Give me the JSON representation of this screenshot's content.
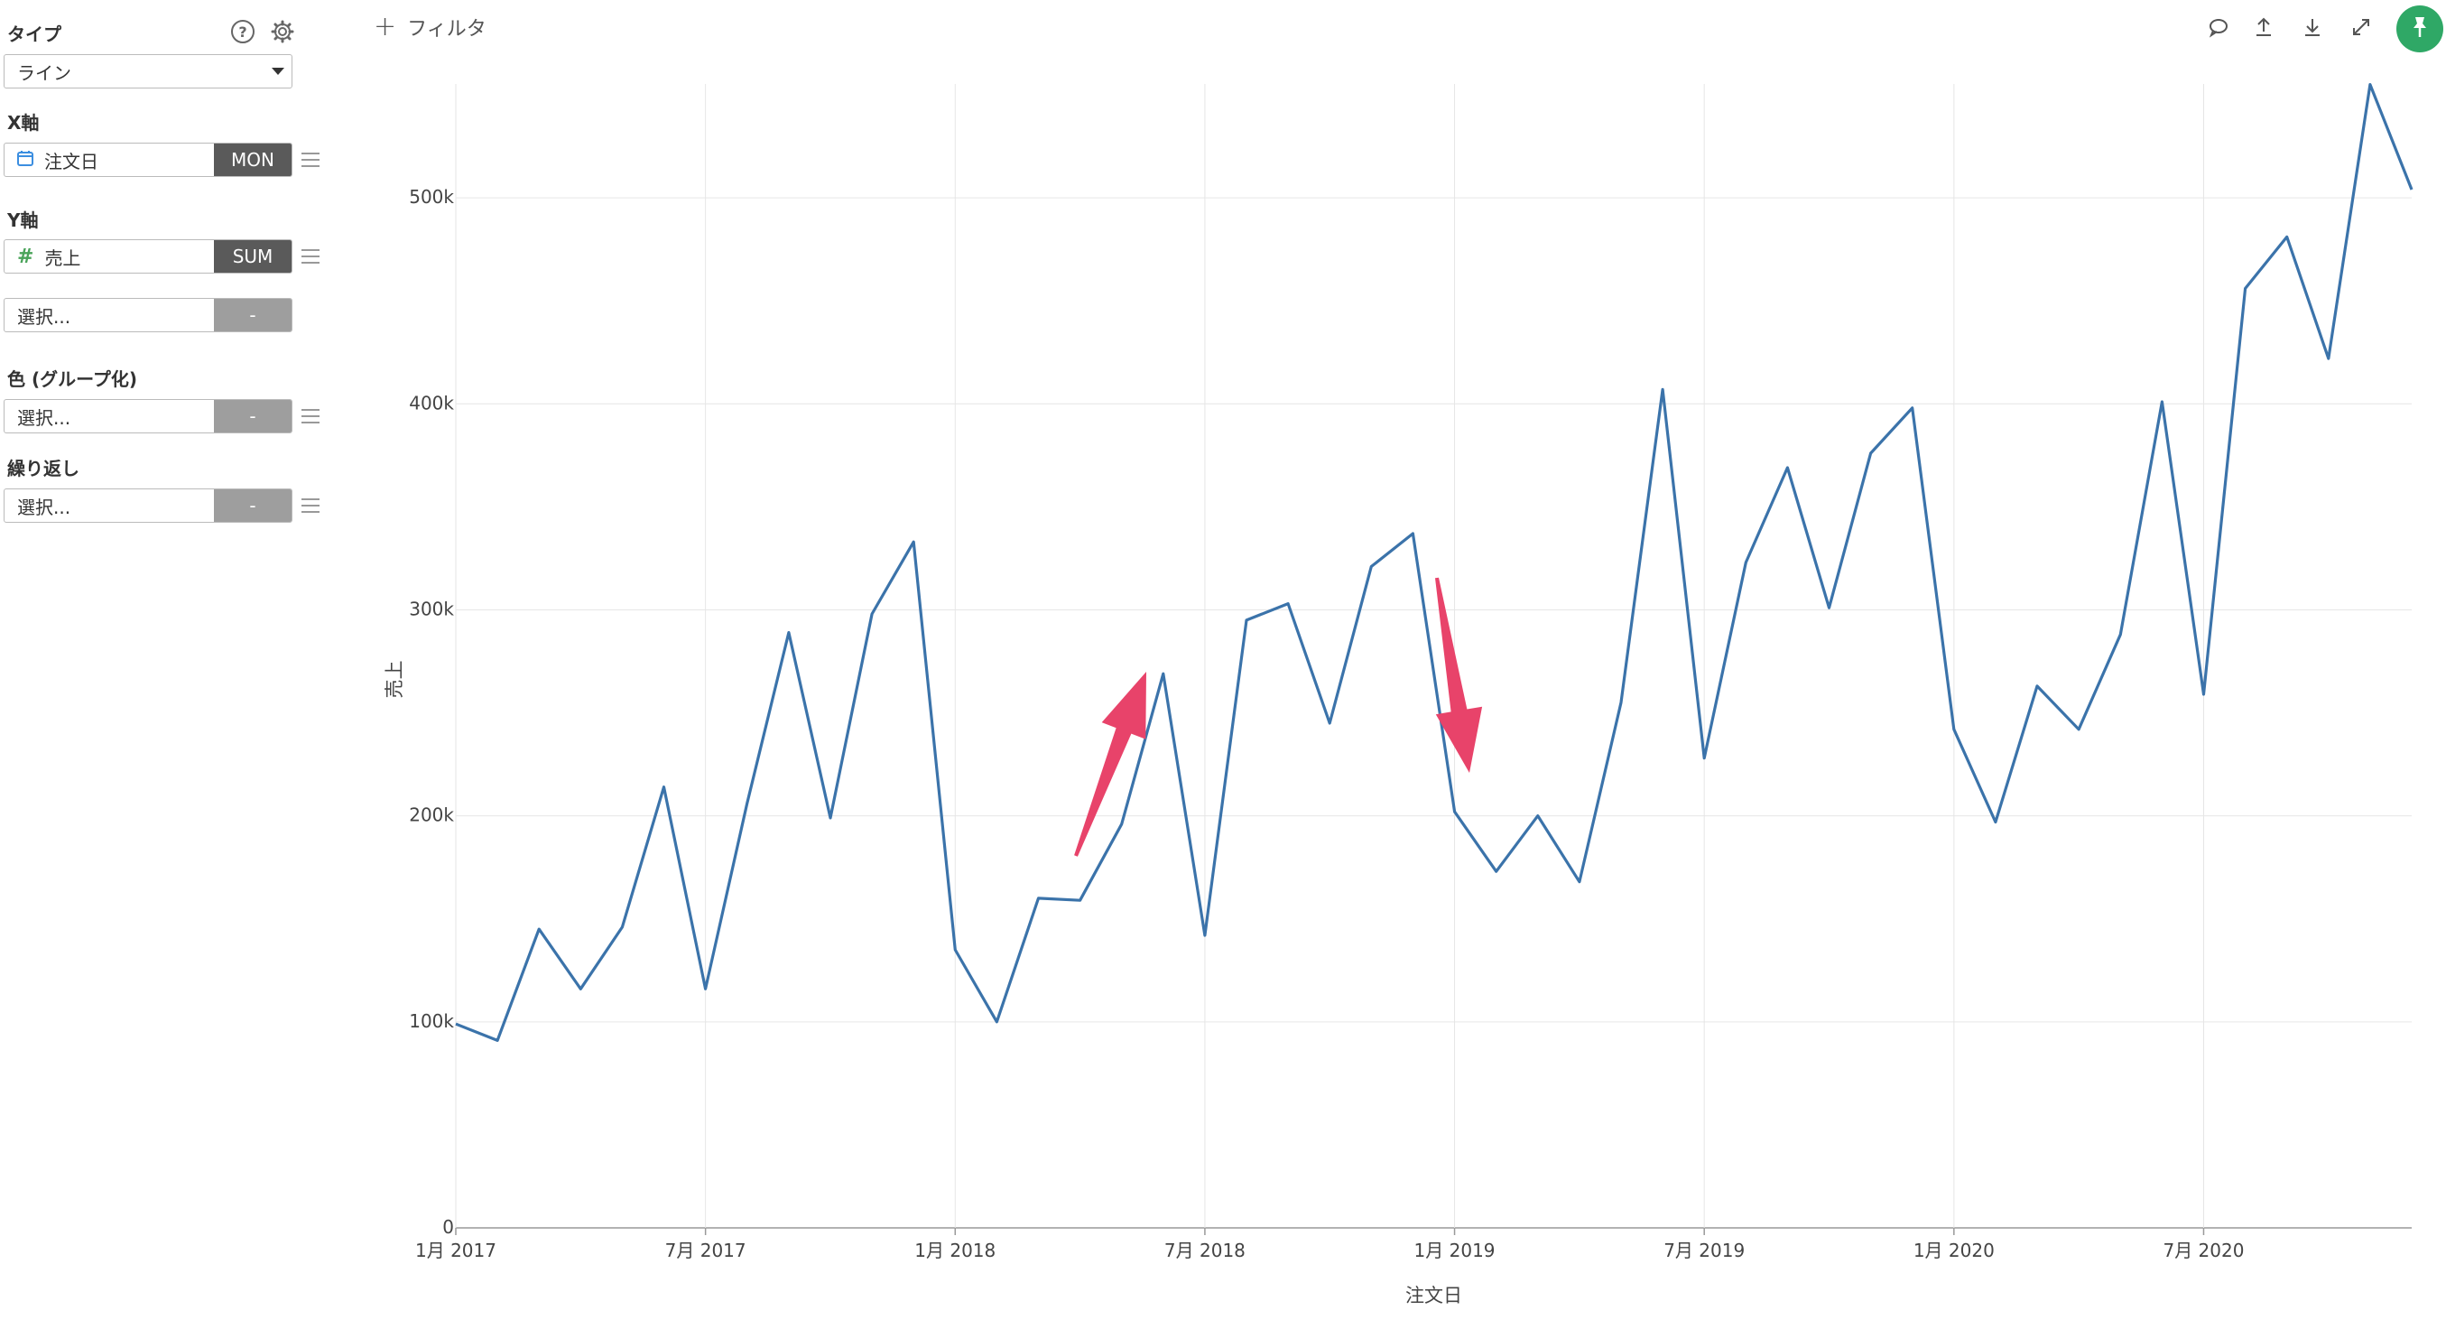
{
  "sidebar": {
    "type_label": "タイプ",
    "type_value": "ライン",
    "x_label": "X軸",
    "x_field": "注文日",
    "x_agg": "MON",
    "y_label": "Y軸",
    "y_field": "売上",
    "y_agg": "SUM",
    "y2_placeholder": "選択...",
    "y2_agg": "-",
    "color_label": "色 (グループ化)",
    "color_placeholder": "選択...",
    "color_agg": "-",
    "repeat_label": "繰り返し",
    "repeat_placeholder": "選択...",
    "repeat_agg": "-",
    "help_glyph": "?"
  },
  "toolbar": {
    "filter_label": "フィルタ",
    "filter_plus": "+"
  },
  "colors": {
    "line": "#3b73aa",
    "arrow": "#e8436a",
    "pin": "#2fa866",
    "tag_dark": "#5a5a5a",
    "tag_grey": "#9e9e9e"
  },
  "icons": [
    "help-icon",
    "gear-icon",
    "calendar-icon",
    "hash-icon",
    "comment-icon",
    "upload-icon",
    "download-icon",
    "expand-icon",
    "pin-icon"
  ],
  "chart_data": {
    "type": "line",
    "xlabel": "注文日",
    "ylabel": "売上",
    "ylim": [
      0,
      550000
    ],
    "grid": true,
    "y_ticks": [
      {
        "value": 0,
        "label": "0"
      },
      {
        "value": 100000,
        "label": "100k"
      },
      {
        "value": 200000,
        "label": "200k"
      },
      {
        "value": 300000,
        "label": "300k"
      },
      {
        "value": 400000,
        "label": "400k"
      },
      {
        "value": 500000,
        "label": "500k"
      }
    ],
    "x_ticks": [
      "1月 2017",
      "7月 2017",
      "1月 2018",
      "7月 2018",
      "1月 2019",
      "7月 2019",
      "1月 2020",
      "7月 2020"
    ],
    "x_start": "2017-01",
    "x_end": "2020-12",
    "series": [
      {
        "values": [
          99000,
          91000,
          145000,
          116000,
          146000,
          214000,
          116000,
          206000,
          289000,
          199000,
          298000,
          333000,
          135000,
          100000,
          160000,
          159000,
          196000,
          269000,
          142000,
          295000,
          303000,
          245000,
          321000,
          337000,
          202000,
          173000,
          200000,
          168000,
          255000,
          407000,
          228000,
          323000,
          369000,
          301000,
          376000,
          398000,
          242000,
          197000,
          263000,
          242000,
          288000,
          401000,
          259000,
          456000,
          481000,
          422000,
          555000,
          504000
        ]
      }
    ]
  }
}
